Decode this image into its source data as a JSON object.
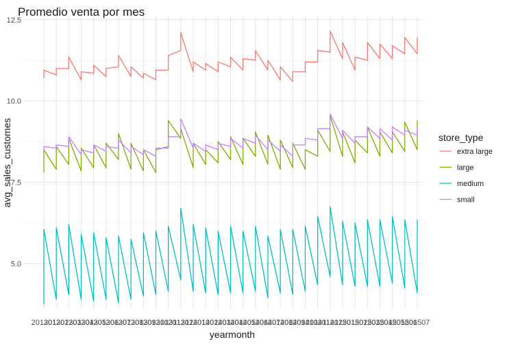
{
  "chart_data": {
    "type": "line",
    "title": "Promedio venta por mes",
    "xlabel": "yearmonth",
    "ylabel": "avg_sales_customes",
    "ylim": [
      3.6,
      12.6
    ],
    "yticks": [
      5.0,
      7.5,
      10.0,
      12.5
    ],
    "ytick_labels": [
      "5.0",
      "7.5",
      "10.0",
      "12.5"
    ],
    "grid": true,
    "legend_position": "right",
    "legend_title": "store_type",
    "x": [
      "201301",
      "201302",
      "201303",
      "201304",
      "201305",
      "201306",
      "201307",
      "201308",
      "201309",
      "201310",
      "201311",
      "201312",
      "201401",
      "201402",
      "201403",
      "201404",
      "201405",
      "201406",
      "201407",
      "201408",
      "201409",
      "201410",
      "201411",
      "201412",
      "201501",
      "201502",
      "201503",
      "201504",
      "201505",
      "201506",
      "201507"
    ],
    "x_tick_labels": [
      "201301",
      "201302",
      "201303",
      "201304",
      "201305",
      "201306",
      "201307",
      "201308",
      "201309",
      "201310",
      "201311",
      "201312",
      "201401",
      "201402",
      "201403",
      "201404",
      "201405",
      "201406",
      "201407",
      "201408",
      "201409",
      "201410",
      "201411",
      "201412",
      "201501",
      "201502",
      "201503",
      "201504",
      "201505",
      "201506",
      "201507"
    ],
    "series": [
      {
        "name": "extra large",
        "color": "#F8766D",
        "segments": [
          [
            10.7,
            10.95
          ],
          [
            10.8,
            11.0
          ],
          [
            11.0,
            11.35
          ],
          [
            10.65,
            10.9
          ],
          [
            10.85,
            11.1
          ],
          [
            10.75,
            11.0
          ],
          [
            11.05,
            11.4
          ],
          [
            10.75,
            11.05
          ],
          [
            10.7,
            10.85
          ],
          [
            10.65,
            10.95
          ],
          [
            10.95,
            11.4
          ],
          [
            11.55,
            12.1
          ],
          [
            10.9,
            11.2
          ],
          [
            10.95,
            11.15
          ],
          [
            10.9,
            11.2
          ],
          [
            11.05,
            11.35
          ],
          [
            10.95,
            11.3
          ],
          [
            11.25,
            11.55
          ],
          [
            10.95,
            11.25
          ],
          [
            10.65,
            11.05
          ],
          [
            10.6,
            10.9
          ],
          [
            10.9,
            11.2
          ],
          [
            11.2,
            11.55
          ],
          [
            11.5,
            12.15
          ],
          [
            11.3,
            11.8
          ],
          [
            10.95,
            11.35
          ],
          [
            11.25,
            11.8
          ],
          [
            11.3,
            11.75
          ],
          [
            11.3,
            11.7
          ],
          [
            11.45,
            11.95
          ],
          [
            11.45,
            11.95
          ]
        ]
      },
      {
        "name": "large",
        "color": "#7CAE00",
        "segments": [
          [
            7.8,
            8.5
          ],
          [
            7.9,
            8.6
          ],
          [
            8.05,
            8.85
          ],
          [
            7.85,
            8.55
          ],
          [
            7.95,
            8.65
          ],
          [
            7.95,
            8.7
          ],
          [
            8.2,
            9.0
          ],
          [
            7.9,
            8.7
          ],
          [
            7.85,
            8.5
          ],
          [
            7.8,
            8.5
          ],
          [
            8.6,
            9.4
          ],
          [
            8.85,
            9.15
          ],
          [
            7.95,
            8.7
          ],
          [
            8.05,
            8.5
          ],
          [
            8.1,
            8.75
          ],
          [
            8.2,
            8.9
          ],
          [
            8.05,
            8.85
          ],
          [
            8.3,
            9.05
          ],
          [
            8.05,
            8.95
          ],
          [
            7.9,
            8.8
          ],
          [
            7.95,
            8.7
          ],
          [
            7.9,
            8.5
          ],
          [
            8.3,
            9.1
          ],
          [
            8.45,
            9.55
          ],
          [
            8.3,
            9.05
          ],
          [
            8.1,
            8.8
          ],
          [
            8.4,
            9.2
          ],
          [
            8.3,
            9.05
          ],
          [
            8.4,
            9.05
          ],
          [
            8.45,
            9.35
          ],
          [
            8.5,
            9.4
          ]
        ]
      },
      {
        "name": "medium",
        "color": "#00BFC4",
        "segments": [
          [
            3.75,
            6.05
          ],
          [
            3.9,
            6.1
          ],
          [
            4.05,
            6.2
          ],
          [
            3.9,
            5.9
          ],
          [
            3.85,
            5.95
          ],
          [
            3.9,
            5.8
          ],
          [
            3.8,
            5.85
          ],
          [
            3.9,
            5.75
          ],
          [
            4.0,
            5.95
          ],
          [
            4.05,
            6.0
          ],
          [
            4.15,
            6.15
          ],
          [
            4.5,
            6.7
          ],
          [
            4.15,
            6.2
          ],
          [
            4.1,
            6.1
          ],
          [
            4.05,
            6.0
          ],
          [
            4.1,
            6.15
          ],
          [
            4.1,
            6.0
          ],
          [
            4.15,
            6.15
          ],
          [
            3.95,
            5.85
          ],
          [
            4.1,
            6.05
          ],
          [
            4.05,
            6.05
          ],
          [
            4.15,
            6.15
          ],
          [
            4.35,
            6.45
          ],
          [
            4.6,
            6.75
          ],
          [
            4.35,
            6.3
          ],
          [
            4.3,
            6.25
          ],
          [
            4.3,
            6.35
          ],
          [
            4.3,
            6.35
          ],
          [
            4.4,
            6.45
          ],
          [
            4.25,
            6.35
          ],
          [
            4.1,
            6.35
          ]
        ]
      },
      {
        "name": "small",
        "color": "#C77CFF",
        "segments": [
          [
            8.45,
            8.6
          ],
          [
            8.55,
            8.65
          ],
          [
            8.6,
            8.9
          ],
          [
            8.35,
            8.5
          ],
          [
            8.4,
            8.65
          ],
          [
            8.45,
            8.6
          ],
          [
            8.55,
            8.8
          ],
          [
            8.4,
            8.6
          ],
          [
            8.35,
            8.5
          ],
          [
            8.3,
            8.55
          ],
          [
            8.55,
            8.9
          ],
          [
            8.9,
            9.45
          ],
          [
            8.55,
            8.7
          ],
          [
            8.45,
            8.65
          ],
          [
            8.5,
            8.7
          ],
          [
            8.6,
            8.85
          ],
          [
            8.55,
            8.85
          ],
          [
            8.7,
            8.95
          ],
          [
            8.5,
            8.8
          ],
          [
            8.45,
            8.65
          ],
          [
            8.3,
            8.65
          ],
          [
            8.65,
            8.85
          ],
          [
            8.8,
            9.15
          ],
          [
            9.15,
            9.6
          ],
          [
            8.85,
            9.1
          ],
          [
            8.7,
            8.9
          ],
          [
            8.9,
            9.2
          ],
          [
            8.85,
            9.15
          ],
          [
            8.8,
            9.2
          ],
          [
            8.95,
            9.1
          ],
          [
            8.95,
            9.2
          ]
        ]
      }
    ]
  }
}
